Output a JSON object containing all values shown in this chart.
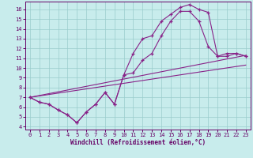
{
  "bg_color": "#c8ecec",
  "grid_color": "#99cccc",
  "line_color": "#882288",
  "xlabel": "Windchill (Refroidissement éolien,°C)",
  "xlim": [
    -0.5,
    23.5
  ],
  "ylim": [
    3.7,
    16.8
  ],
  "yticks": [
    4,
    5,
    6,
    7,
    8,
    9,
    10,
    11,
    12,
    13,
    14,
    15,
    16
  ],
  "xticks": [
    0,
    1,
    2,
    3,
    4,
    5,
    6,
    7,
    8,
    9,
    10,
    11,
    12,
    13,
    14,
    15,
    16,
    17,
    18,
    19,
    20,
    21,
    22,
    23
  ],
  "line1_x": [
    0,
    1,
    2,
    3,
    4,
    5,
    6,
    7,
    8,
    9,
    10,
    11,
    12,
    13,
    14,
    15,
    16,
    17,
    18,
    19,
    20,
    21,
    22,
    23
  ],
  "line1_y": [
    7.0,
    6.5,
    6.3,
    5.7,
    5.2,
    4.4,
    5.5,
    6.3,
    7.5,
    6.3,
    9.3,
    11.5,
    13.0,
    13.3,
    14.8,
    15.5,
    16.2,
    16.5,
    16.0,
    15.7,
    11.2,
    11.5,
    11.5,
    11.2
  ],
  "line2_x": [
    0,
    1,
    2,
    3,
    4,
    5,
    6,
    7,
    8,
    9,
    10,
    11,
    12,
    13,
    14,
    15,
    16,
    17,
    18,
    19,
    20,
    21,
    22,
    23
  ],
  "line2_y": [
    7.0,
    6.5,
    6.3,
    5.7,
    5.2,
    4.4,
    5.5,
    6.3,
    7.5,
    6.3,
    9.3,
    9.5,
    10.8,
    11.5,
    13.3,
    14.8,
    15.8,
    15.8,
    14.8,
    12.2,
    11.2,
    11.2,
    11.5,
    11.2
  ],
  "line3_x": [
    0,
    23
  ],
  "line3_y": [
    7.0,
    11.3
  ],
  "line4_x": [
    0,
    23
  ],
  "line4_y": [
    7.0,
    10.3
  ],
  "tick_color": "#660066",
  "label_color": "#660066"
}
